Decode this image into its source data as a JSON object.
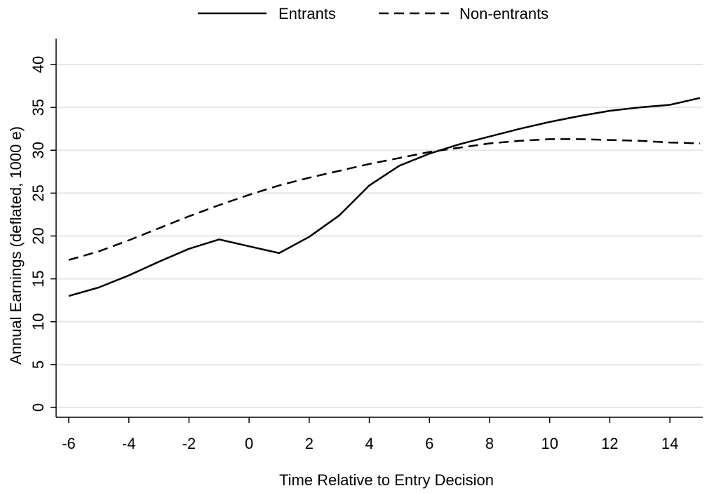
{
  "chart_data": {
    "type": "line",
    "title": "",
    "xlabel": "Time Relative to Entry Decision",
    "ylabel": "Annual Earnings (deflated, 1000 e)",
    "xlim": [
      -6,
      15
    ],
    "ylim": [
      0,
      40
    ],
    "x_ticks": [
      -6,
      -4,
      -2,
      0,
      2,
      4,
      6,
      8,
      10,
      12,
      14
    ],
    "y_ticks": [
      0,
      5,
      10,
      15,
      20,
      25,
      30,
      35,
      40
    ],
    "grid": "horizontal",
    "legend_position": "top",
    "series": [
      {
        "name": "Entrants",
        "style": "solid",
        "color": "#000000",
        "x": [
          -6,
          -5,
          -4,
          -3,
          -2,
          -1,
          0,
          1,
          2,
          3,
          4,
          5,
          6,
          7,
          8,
          9,
          10,
          11,
          12,
          13,
          14,
          15
        ],
        "y": [
          13.0,
          14.0,
          15.4,
          17.0,
          18.5,
          19.6,
          18.8,
          18.0,
          19.9,
          22.4,
          25.9,
          28.2,
          29.6,
          30.7,
          31.6,
          32.5,
          33.3,
          34.0,
          34.6,
          35.0,
          35.3,
          36.1
        ]
      },
      {
        "name": "Non-entrants",
        "style": "dashed",
        "color": "#000000",
        "x": [
          -6,
          -5,
          -4,
          -3,
          -2,
          -1,
          0,
          1,
          2,
          3,
          4,
          5,
          6,
          7,
          8,
          9,
          10,
          11,
          12,
          13,
          14,
          15
        ],
        "y": [
          17.2,
          18.2,
          19.5,
          20.9,
          22.3,
          23.6,
          24.8,
          25.9,
          26.8,
          27.6,
          28.4,
          29.1,
          29.8,
          30.3,
          30.8,
          31.1,
          31.3,
          31.3,
          31.2,
          31.1,
          30.9,
          30.8
        ]
      }
    ]
  },
  "colors": {
    "background": "#ffffff",
    "gridline": "#e6e6e6",
    "axis": "#000000",
    "series": "#000000"
  }
}
